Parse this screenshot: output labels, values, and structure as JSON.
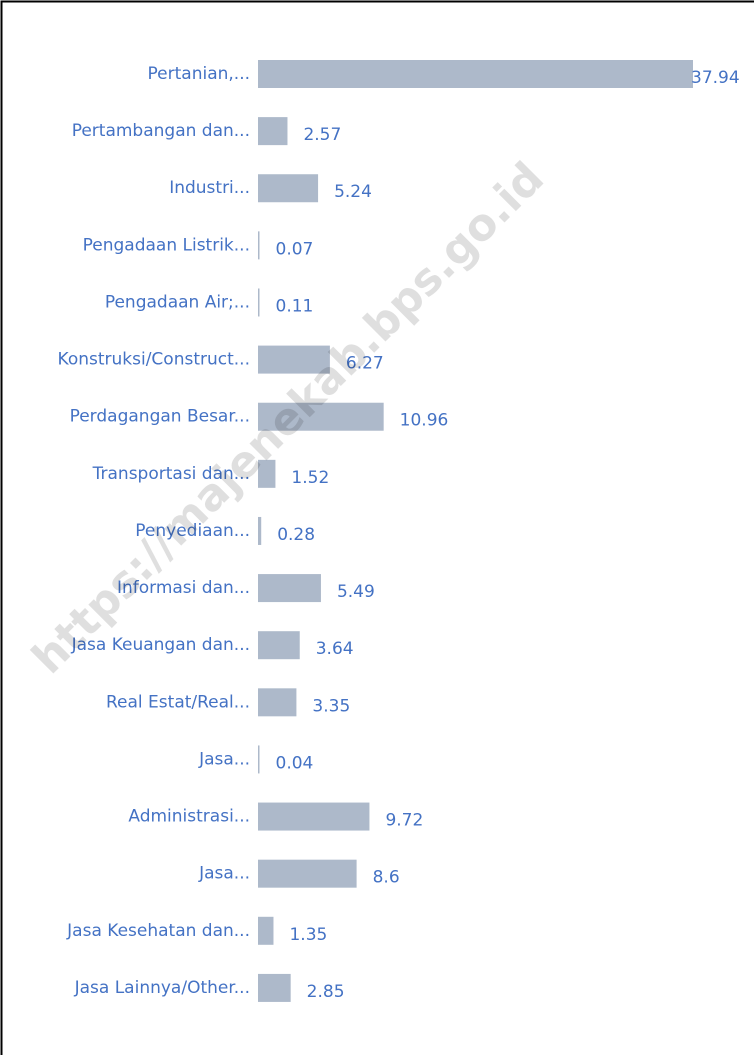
{
  "chart_data": {
    "type": "bar",
    "orientation": "horizontal",
    "categories": [
      "Pertanian,...",
      "Pertambangan dan...",
      "Industri...",
      "Pengadaan Listrik...",
      "Pengadaan Air;...",
      "Konstruksi/Construct...",
      "Perdagangan Besar...",
      "Transportasi dan...",
      "Penyediaan...",
      "Informasi dan...",
      "Jasa Keuangan dan...",
      "Real Estat/Real...",
      "Jasa...",
      "Administrasi...",
      "Jasa...",
      "Jasa Kesehatan dan...",
      "Jasa Lainnya/Other..."
    ],
    "values": [
      37.94,
      2.57,
      5.24,
      0.07,
      0.11,
      6.27,
      10.96,
      1.52,
      0.28,
      5.49,
      3.64,
      3.35,
      0.04,
      9.72,
      8.6,
      1.35,
      2.85
    ],
    "color": "#adb9ca",
    "watermark": "https://majenekab.bps.go.id"
  }
}
